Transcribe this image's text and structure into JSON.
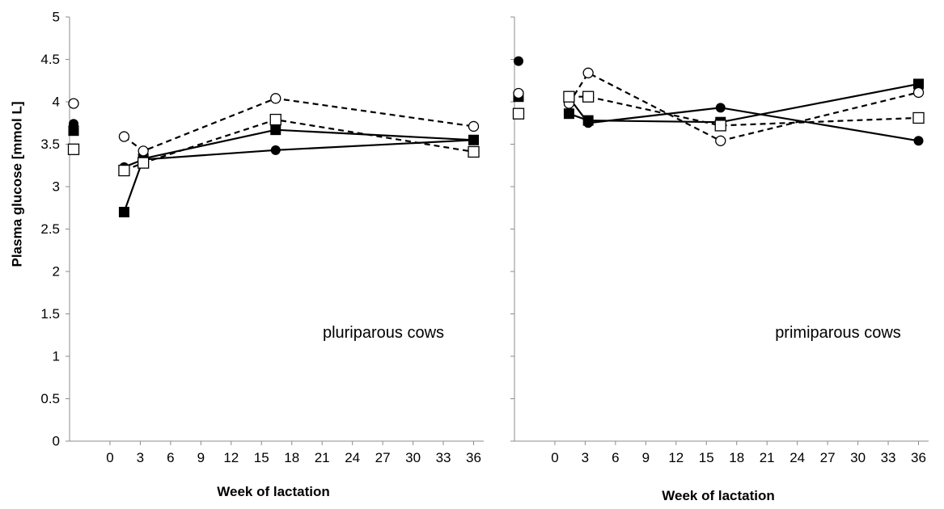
{
  "chart_data": {
    "type": "line",
    "ylabel": "Plasma glucose [mmol L]",
    "xlabel": "Week of lactation",
    "ylim": [
      0,
      5
    ],
    "yticks": [
      "0",
      "0.5",
      "1",
      "1.5",
      "2",
      "2.5",
      "3",
      "3.5",
      "4",
      "4.5",
      "5"
    ],
    "xlim": [
      -4,
      37
    ],
    "xticks": [
      "0",
      "3",
      "6",
      "9",
      "12",
      "15",
      "18",
      "21",
      "24",
      "27",
      "30",
      "33",
      "36"
    ],
    "grid": false,
    "legend": "none",
    "panels": [
      {
        "annotation": "pluriparous cows",
        "series": [
          {
            "marker": "filled-circle",
            "line": "solid",
            "points": [
              {
                "x": -3.6,
                "y": 3.74
              },
              {
                "x": 1.4,
                "y": 3.23
              },
              {
                "x": 3.3,
                "y": 3.32
              },
              {
                "x": 16.4,
                "y": 3.43
              },
              {
                "x": 36,
                "y": 3.55
              }
            ]
          },
          {
            "marker": "filled-square",
            "line": "solid",
            "points": [
              {
                "x": -3.6,
                "y": 3.66
              },
              {
                "x": 1.4,
                "y": 2.7
              },
              {
                "x": 3.3,
                "y": 3.33
              },
              {
                "x": 16.4,
                "y": 3.67
              },
              {
                "x": 36,
                "y": 3.55
              }
            ]
          },
          {
            "marker": "open-circle",
            "line": "dashed",
            "points": [
              {
                "x": -3.6,
                "y": 3.98
              },
              {
                "x": 1.4,
                "y": 3.59
              },
              {
                "x": 3.3,
                "y": 3.42
              },
              {
                "x": 16.4,
                "y": 4.04
              },
              {
                "x": 36,
                "y": 3.71
              }
            ]
          },
          {
            "marker": "open-square",
            "line": "dashed",
            "points": [
              {
                "x": -3.6,
                "y": 3.44
              },
              {
                "x": 1.4,
                "y": 3.19
              },
              {
                "x": 3.3,
                "y": 3.28
              },
              {
                "x": 16.4,
                "y": 3.79
              },
              {
                "x": 36,
                "y": 3.41
              }
            ]
          }
        ]
      },
      {
        "annotation": "primiparous cows",
        "series": [
          {
            "marker": "filled-circle",
            "line": "solid",
            "points": [
              {
                "x": -3.6,
                "y": 4.48
              },
              {
                "x": 1.4,
                "y": 4.05
              },
              {
                "x": 3.3,
                "y": 3.75
              },
              {
                "x": 16.4,
                "y": 3.93
              },
              {
                "x": 36,
                "y": 3.54
              }
            ]
          },
          {
            "marker": "filled-square",
            "line": "solid",
            "points": [
              {
                "x": -3.6,
                "y": 4.06
              },
              {
                "x": 1.4,
                "y": 3.86
              },
              {
                "x": 3.3,
                "y": 3.78
              },
              {
                "x": 16.4,
                "y": 3.76
              },
              {
                "x": 36,
                "y": 4.21
              }
            ]
          },
          {
            "marker": "open-circle",
            "line": "dashed",
            "points": [
              {
                "x": -3.6,
                "y": 4.1
              },
              {
                "x": 1.4,
                "y": 3.98
              },
              {
                "x": 3.3,
                "y": 4.34
              },
              {
                "x": 16.4,
                "y": 3.54
              },
              {
                "x": 36,
                "y": 4.11
              }
            ]
          },
          {
            "marker": "open-square",
            "line": "dashed",
            "points": [
              {
                "x": -3.6,
                "y": 3.86
              },
              {
                "x": 1.4,
                "y": 4.06
              },
              {
                "x": 3.3,
                "y": 4.06
              },
              {
                "x": 16.4,
                "y": 3.72
              },
              {
                "x": 36,
                "y": 3.81
              }
            ]
          }
        ]
      }
    ]
  }
}
